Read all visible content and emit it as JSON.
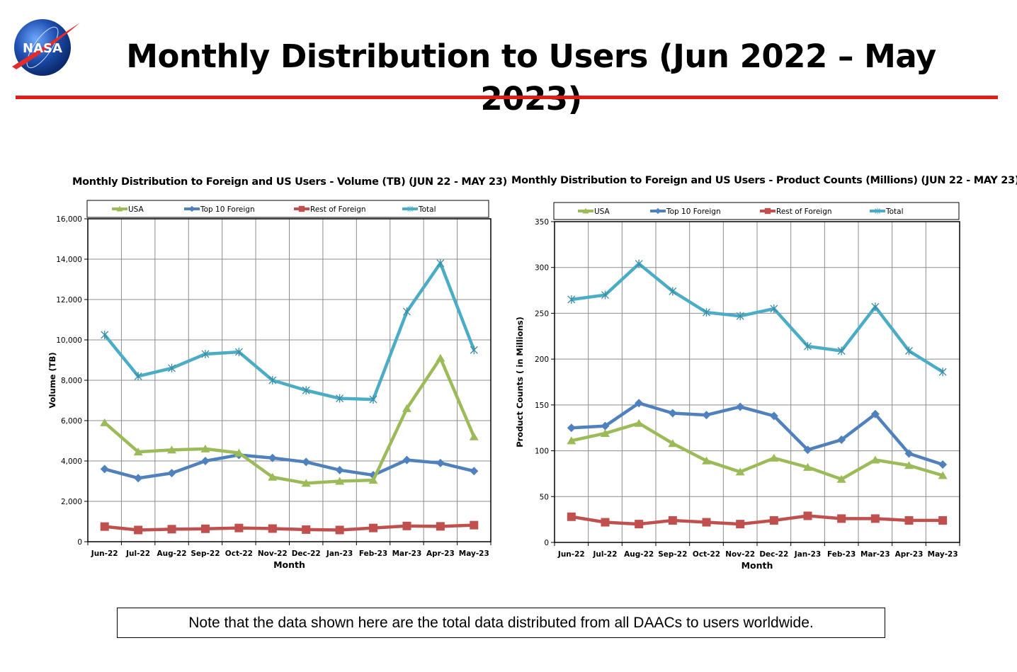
{
  "header": {
    "title": "Monthly Distribution to Users (Jun 2022 – May 2023)",
    "logo_text": "NASA",
    "rule_color": "#e31a1a"
  },
  "note": "Note that the data shown here are the total data distributed from all DAACs to users worldwide.",
  "chart_data": [
    {
      "type": "line",
      "title": "Monthly Distribution to Foreign and US Users - Volume  (TB) (JUN 22 - MAY 23)",
      "xlabel": "Month",
      "ylabel": "Volume (TB)",
      "ylim": [
        0,
        16000
      ],
      "yticks": [
        0,
        2000,
        4000,
        6000,
        8000,
        10000,
        12000,
        14000,
        16000
      ],
      "ytick_labels": [
        "0",
        "2,000",
        "4,000",
        "6,000",
        "8,000",
        "10,000",
        "12,000",
        "14,000",
        "16,000"
      ],
      "grid": true,
      "legend_position": "top",
      "categories": [
        "Jun-22",
        "Jul-22",
        "Aug-22",
        "Sep-22",
        "Oct-22",
        "Nov-22",
        "Dec-22",
        "Jan-23",
        "Feb-23",
        "Mar-23",
        "Apr-23",
        "May-23"
      ],
      "series": [
        {
          "name": "USA",
          "color": "#9bbb59",
          "marker": "triangle",
          "values": [
            5900,
            4450,
            4550,
            4600,
            4400,
            3200,
            2900,
            3000,
            3050,
            6600,
            9100,
            5200
          ]
        },
        {
          "name": "Top 10 Foreign",
          "color": "#4f81bd",
          "marker": "diamond",
          "values": [
            3600,
            3150,
            3400,
            4000,
            4300,
            4150,
            3950,
            3550,
            3300,
            4050,
            3900,
            3500
          ]
        },
        {
          "name": "Rest of Foreign",
          "color": "#c0504d",
          "marker": "square",
          "values": [
            750,
            580,
            620,
            640,
            680,
            650,
            600,
            580,
            680,
            780,
            760,
            820
          ]
        },
        {
          "name": "Total",
          "color": "#4bacc6",
          "marker": "star",
          "values": [
            10250,
            8200,
            8600,
            9300,
            9400,
            8000,
            7500,
            7100,
            7050,
            11400,
            13800,
            9500
          ]
        }
      ]
    },
    {
      "type": "line",
      "title": "Monthly Distribution to Foreign and US Users - Product Counts (Millions) (JUN 22 - MAY 23)",
      "xlabel": "Month",
      "ylabel": "Product Counts ( in Millions)",
      "ylim": [
        0,
        350
      ],
      "yticks": [
        0,
        50,
        100,
        150,
        200,
        250,
        300,
        350
      ],
      "ytick_labels": [
        "0",
        "50",
        "100",
        "150",
        "200",
        "250",
        "300",
        "350"
      ],
      "grid": true,
      "legend_position": "top",
      "categories": [
        "Jun-22",
        "Jul-22",
        "Aug-22",
        "Sep-22",
        "Oct-22",
        "Nov-22",
        "Dec-22",
        "Jan-23",
        "Feb-23",
        "Mar-23",
        "Apr-23",
        "May-23"
      ],
      "series": [
        {
          "name": "USA",
          "color": "#9bbb59",
          "marker": "triangle",
          "values": [
            111,
            119,
            130,
            108,
            89,
            77,
            92,
            82,
            69,
            90,
            84,
            73
          ]
        },
        {
          "name": "Top 10 Foreign",
          "color": "#4f81bd",
          "marker": "diamond",
          "values": [
            125,
            127,
            152,
            141,
            139,
            148,
            138,
            101,
            112,
            140,
            97,
            85
          ]
        },
        {
          "name": "Rest of Foreign",
          "color": "#c0504d",
          "marker": "square",
          "values": [
            28,
            22,
            20,
            24,
            22,
            20,
            24,
            29,
            26,
            26,
            24,
            24
          ]
        },
        {
          "name": "Total",
          "color": "#4bacc6",
          "marker": "star",
          "values": [
            265,
            270,
            304,
            274,
            251,
            247,
            255,
            214,
            209,
            257,
            209,
            186
          ]
        }
      ]
    }
  ]
}
